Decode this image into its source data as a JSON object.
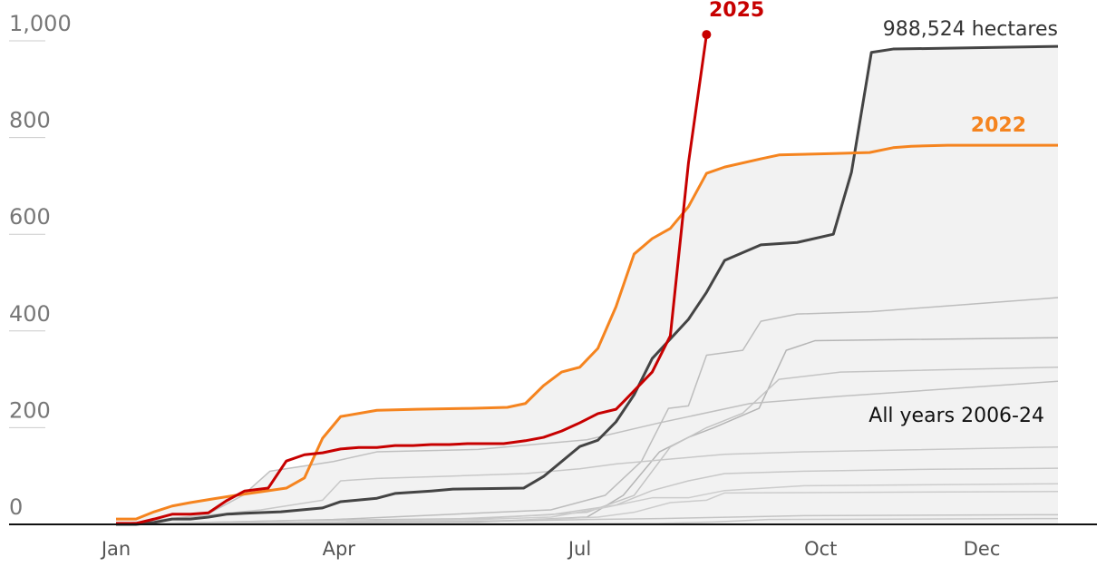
{
  "chart_data": {
    "type": "line",
    "xlim": [
      0,
      52
    ],
    "ylim": [
      0,
      1000
    ],
    "xticks": [
      {
        "value": 0,
        "label": "Jan"
      },
      {
        "value": 12.3,
        "label": "Apr"
      },
      {
        "value": 25.6,
        "label": "Jul"
      },
      {
        "value": 38.9,
        "label": "Oct"
      },
      {
        "value": 47.8,
        "label": "Dec"
      }
    ],
    "yticks": [
      0,
      200,
      400,
      600,
      800,
      {
        "value": 1000,
        "label": "1,000"
      }
    ],
    "annotations": [
      "2025",
      "2022",
      "988,524 hectares",
      "All years 2006-24"
    ],
    "series": [
      {
        "color": "#bdbdbd",
        "x": [
          0,
          6,
          12,
          18,
          24,
          27,
          29,
          30.5,
          31.6,
          32.6,
          34.6,
          35.6,
          37.6,
          41.7,
          52
        ],
        "values": [
          0,
          5,
          10,
          20,
          30,
          60,
          130,
          240,
          245,
          350,
          360,
          420,
          435,
          440,
          469
        ]
      },
      {
        "color": "#b5b5b5",
        "x": [
          0,
          20,
          26,
          28,
          30,
          31.6,
          33,
          35.5,
          37,
          38.6,
          52
        ],
        "values": [
          0,
          5,
          15,
          60,
          150,
          180,
          200,
          240,
          360,
          380,
          386
        ]
      },
      {
        "color": "#c4c4c4",
        "x": [
          0,
          10,
          20,
          26,
          28.6,
          30.6,
          32.6,
          34.6,
          36.6,
          40,
          52
        ],
        "values": [
          0,
          8,
          12,
          25,
          60,
          160,
          200,
          230,
          300,
          315,
          325
        ]
      },
      {
        "color": "#c0c0c0",
        "x": [
          0,
          5,
          7,
          8.5,
          12,
          14.4,
          20,
          26,
          30,
          35,
          40,
          52
        ],
        "values": [
          0,
          20,
          60,
          110,
          130,
          150,
          155,
          175,
          210,
          250,
          265,
          296
        ]
      },
      {
        "color": "#c8c8c8",
        "x": [
          0,
          8,
          11.4,
          12.4,
          14.4,
          18.6,
          22.6,
          25.6,
          27.6,
          30.6,
          33.6,
          38,
          52
        ],
        "values": [
          0,
          30,
          50,
          90,
          95,
          100,
          105,
          115,
          125,
          135,
          145,
          150,
          160
        ]
      },
      {
        "color": "#c8c8c8",
        "x": [
          0,
          12,
          18,
          24,
          27.6,
          29.6,
          31.6,
          33.6,
          38,
          45,
          52
        ],
        "values": [
          0,
          5,
          10,
          20,
          40,
          70,
          90,
          105,
          110,
          114,
          116
        ]
      },
      {
        "color": "#cccccc",
        "x": [
          0,
          12,
          20,
          24,
          27,
          29.6,
          31.6,
          33.6,
          38,
          52
        ],
        "values": [
          0,
          5,
          10,
          15,
          35,
          55,
          55,
          70,
          80,
          84
        ]
      },
      {
        "color": "#cccccc",
        "x": [
          0,
          14,
          22,
          26.6,
          28.6,
          30.6,
          32.6,
          33.6,
          52
        ],
        "values": [
          0,
          4,
          8,
          15,
          25,
          45,
          50,
          65,
          68
        ]
      },
      {
        "color": "#c4c4c4",
        "x": [
          0,
          12,
          20,
          26,
          30,
          34,
          38,
          52
        ],
        "values": [
          0,
          3,
          6,
          10,
          12,
          15,
          18,
          20
        ]
      },
      {
        "color": "#c8c8c8",
        "x": [
          0,
          20,
          30,
          33,
          36,
          52
        ],
        "values": [
          0,
          1,
          2,
          5,
          10,
          12
        ]
      },
      {
        "color": "#444444",
        "x": [
          0,
          1.1,
          2.1,
          3.1,
          4.1,
          5.1,
          6.1,
          7.1,
          9.1,
          11.4,
          12.4,
          14.4,
          15.4,
          17.4,
          18.6,
          22.5,
          23.6,
          25.6,
          26.6,
          27.6,
          28.6,
          29.6,
          31.6,
          32.6,
          33.6,
          35.6,
          37.6,
          39.6,
          40.6,
          41.7,
          42.9,
          52
        ],
        "values": [
          0,
          0,
          4,
          11,
          11,
          15,
          21,
          23,
          26,
          34,
          47,
          54,
          64,
          69,
          73,
          75,
          99,
          161,
          174,
          212,
          268,
          343,
          424,
          480,
          546,
          578,
          583,
          600,
          728,
          976,
          983,
          988.5
        ]
      },
      {
        "color": "#f5841f",
        "x": [
          0,
          1.1,
          2.1,
          3.1,
          4.1,
          5.4,
          6.6,
          8.1,
          9.4,
          10.4,
          11.4,
          12.4,
          14.4,
          16.6,
          19.6,
          21.6,
          22.6,
          23.6,
          24.6,
          25.6,
          26.6,
          27.6,
          28.6,
          29.6,
          30.6,
          31.6,
          32.6,
          33.6,
          35.6,
          36.6,
          37.6,
          39.6,
          41.6,
          42.9,
          43.9,
          45.9,
          52
        ],
        "values": [
          11,
          11,
          26,
          38,
          45,
          53,
          60,
          68,
          75,
          96,
          178,
          223,
          236,
          238,
          240,
          242,
          250,
          287,
          315,
          325,
          364,
          450,
          559,
          591,
          612,
          657,
          726,
          739,
          756,
          764,
          765,
          767,
          769,
          779,
          782,
          784,
          784
        ]
      },
      {
        "color": "#c70000",
        "x": [
          0,
          1.1,
          2.1,
          3.1,
          4.1,
          5.1,
          6.1,
          7.1,
          8.4,
          9.4,
          10.4,
          11.4,
          12.4,
          13.4,
          14.4,
          15.4,
          16.4,
          17.4,
          18.4,
          19.4,
          21.4,
          22.6,
          23.6,
          24.6,
          25.6,
          26.6,
          27.6,
          28.1,
          29.6,
          30.6,
          31.6,
          32.6
        ],
        "values": [
          2,
          2,
          11,
          21,
          21,
          24,
          49,
          69,
          75,
          131,
          144,
          148,
          156,
          159,
          159,
          163,
          163,
          165,
          165,
          167,
          167,
          173,
          180,
          193,
          210,
          229,
          238,
          257,
          315,
          390,
          747,
          1013
        ]
      }
    ]
  }
}
